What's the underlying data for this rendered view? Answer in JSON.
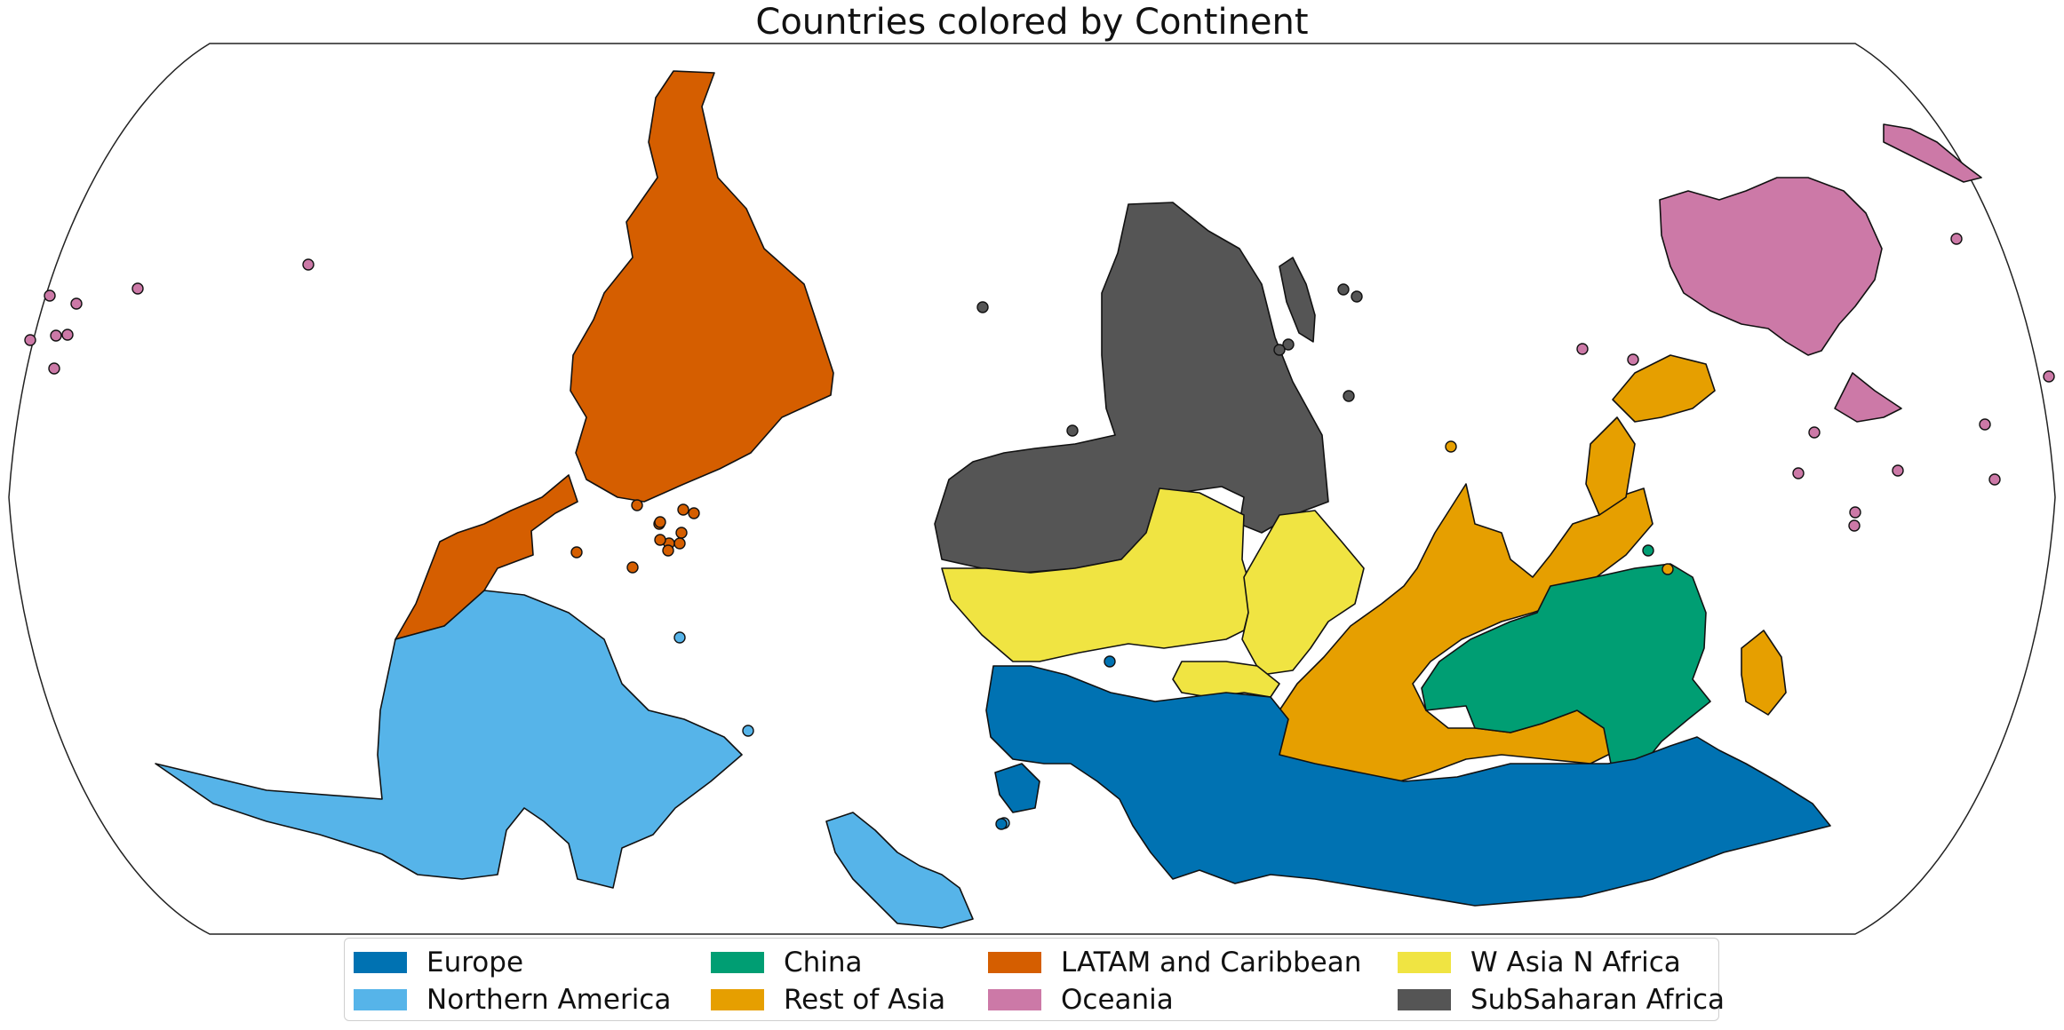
{
  "title": "Countries colored by Continent",
  "legend": {
    "items": [
      {
        "label": "Europe",
        "color": "#0072B2"
      },
      {
        "label": "Northern America",
        "color": "#56B4E9"
      },
      {
        "label": "China",
        "color": "#009E73"
      },
      {
        "label": "Rest of Asia",
        "color": "#E69F00"
      },
      {
        "label": "LATAM and Caribbean",
        "color": "#D55E00"
      },
      {
        "label": "Oceania",
        "color": "#CC79A7"
      },
      {
        "label": "W Asia N Africa",
        "color": "#F0E442"
      },
      {
        "label": "SubSaharan Africa",
        "color": "#555555"
      }
    ]
  },
  "map": {
    "projection": "Robinson (south-up, inverted)",
    "regions": [
      {
        "name": "LATAM and Caribbean",
        "color": "#D55E00"
      },
      {
        "name": "Northern America",
        "color": "#56B4E9"
      },
      {
        "name": "SubSaharan Africa",
        "color": "#555555"
      },
      {
        "name": "W Asia N Africa",
        "color": "#F0E442"
      },
      {
        "name": "Europe",
        "color": "#0072B2"
      },
      {
        "name": "Rest of Asia",
        "color": "#E69F00"
      },
      {
        "name": "China",
        "color": "#009E73"
      },
      {
        "name": "Oceania",
        "color": "#CC79A7"
      }
    ]
  }
}
